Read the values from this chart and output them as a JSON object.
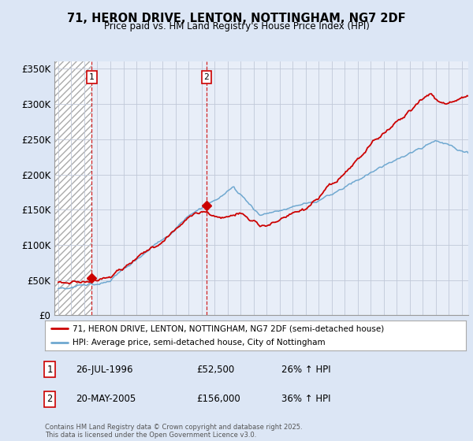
{
  "title": "71, HERON DRIVE, LENTON, NOTTINGHAM, NG7 2DF",
  "subtitle": "Price paid vs. HM Land Registry's House Price Index (HPI)",
  "legend_line1": "71, HERON DRIVE, LENTON, NOTTINGHAM, NG7 2DF (semi-detached house)",
  "legend_line2": "HPI: Average price, semi-detached house, City of Nottingham",
  "footer": "Contains HM Land Registry data © Crown copyright and database right 2025.\nThis data is licensed under the Open Government Licence v3.0.",
  "sale1_label": "1",
  "sale1_date": "26-JUL-1996",
  "sale1_price": "£52,500",
  "sale1_hpi": "26% ↑ HPI",
  "sale2_label": "2",
  "sale2_date": "20-MAY-2005",
  "sale2_price": "£156,000",
  "sale2_hpi": "36% ↑ HPI",
  "sale1_x": 1996.57,
  "sale1_y": 52500,
  "sale2_x": 2005.38,
  "sale2_y": 156000,
  "ylim": [
    0,
    360000
  ],
  "yticks": [
    0,
    50000,
    100000,
    150000,
    200000,
    250000,
    300000,
    350000
  ],
  "ytick_labels": [
    "£0",
    "£50K",
    "£100K",
    "£150K",
    "£200K",
    "£250K",
    "£300K",
    "£350K"
  ],
  "background_color": "#dce6f5",
  "plot_bg_color": "#e8eef8",
  "red_line_color": "#cc0000",
  "blue_line_color": "#6fa8d0",
  "dashed_line_color": "#cc0000",
  "grid_color": "#c0c8d8",
  "xlim_start": 1993.7,
  "xlim_end": 2025.5,
  "hatch_end": 1996.57
}
